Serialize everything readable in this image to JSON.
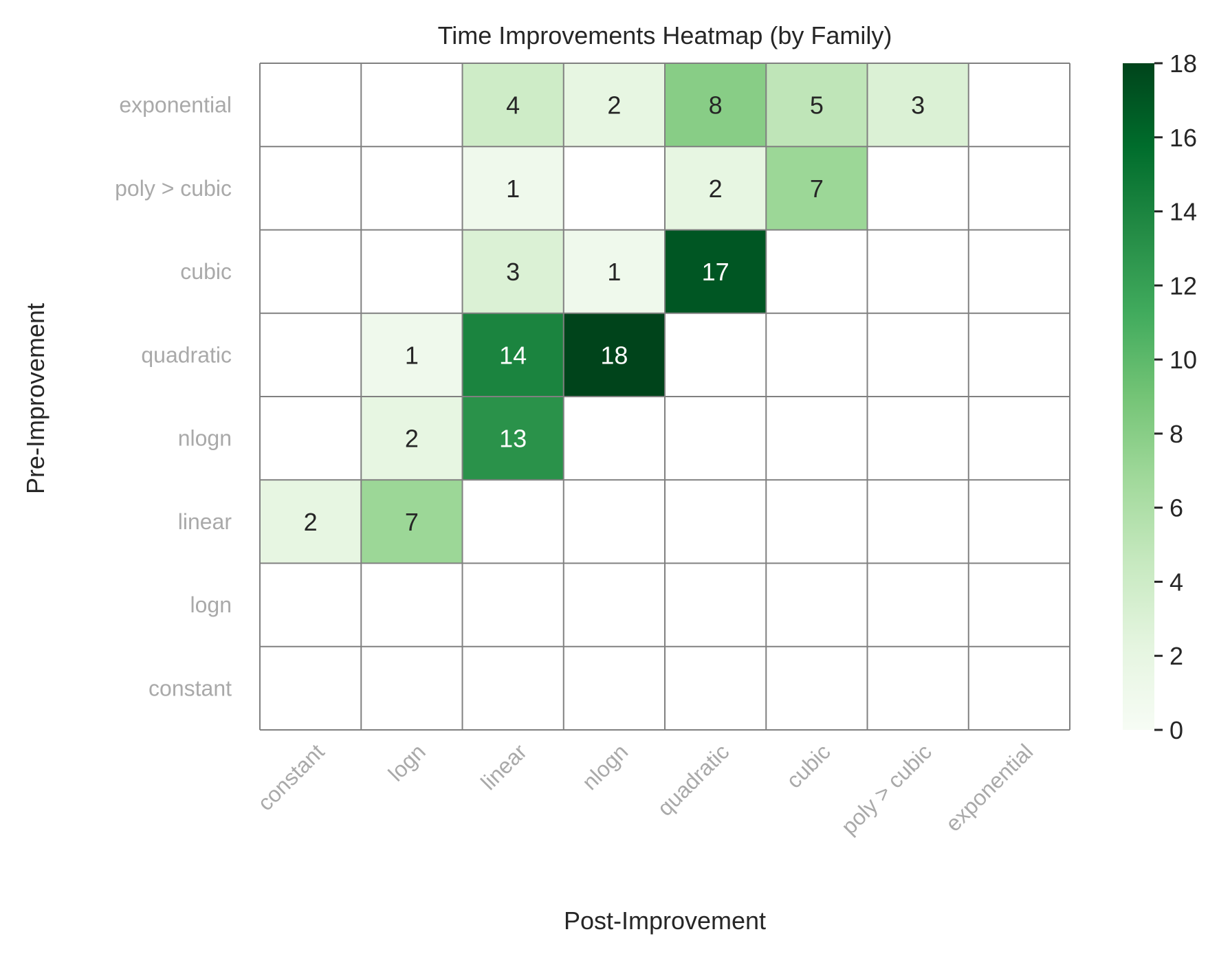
{
  "chart_data": {
    "type": "heatmap",
    "title": "Time Improvements Heatmap (by Family)",
    "xlabel": "Post-Improvement",
    "ylabel": "Pre-Improvement",
    "x_categories": [
      "constant",
      "logn",
      "linear",
      "nlogn",
      "quadratic",
      "cubic",
      "poly > cubic",
      "exponential"
    ],
    "y_categories": [
      "exponential",
      "poly > cubic",
      "cubic",
      "quadratic",
      "nlogn",
      "linear",
      "logn",
      "constant"
    ],
    "values": [
      [
        null,
        null,
        4,
        2,
        8,
        5,
        3,
        null
      ],
      [
        null,
        null,
        1,
        null,
        2,
        7,
        null,
        null
      ],
      [
        null,
        null,
        3,
        1,
        17,
        null,
        null,
        null
      ],
      [
        null,
        1,
        14,
        18,
        null,
        null,
        null,
        null
      ],
      [
        null,
        2,
        13,
        null,
        null,
        null,
        null,
        null
      ],
      [
        2,
        7,
        null,
        null,
        null,
        null,
        null,
        null
      ],
      [
        null,
        null,
        null,
        null,
        null,
        null,
        null,
        null
      ],
      [
        null,
        null,
        null,
        null,
        null,
        null,
        null,
        null
      ]
    ],
    "colorbar": {
      "min": 0,
      "max": 18,
      "ticks": [
        0,
        2,
        4,
        6,
        8,
        10,
        12,
        14,
        16,
        18
      ],
      "colormap": "Greens"
    },
    "grid": true,
    "legend": "colorbar-right"
  }
}
